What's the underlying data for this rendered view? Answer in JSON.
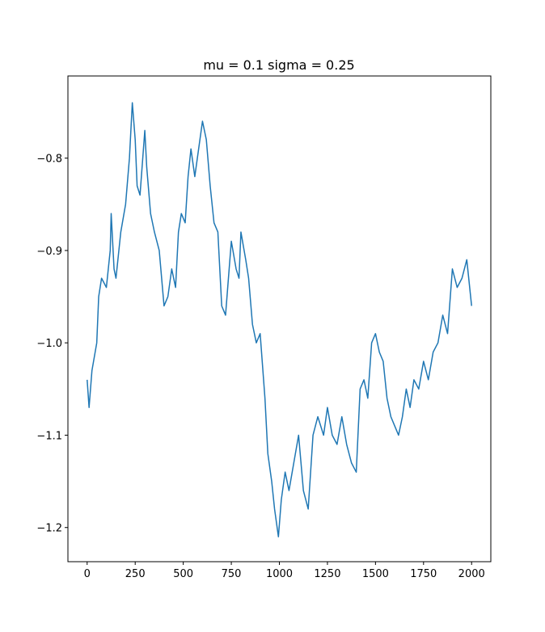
{
  "chart_data": {
    "type": "line",
    "title": "mu = 0.1 sigma = 0.25",
    "x": [
      0,
      10,
      25,
      50,
      60,
      75,
      100,
      120,
      125,
      140,
      150,
      175,
      200,
      220,
      235,
      250,
      260,
      275,
      300,
      310,
      330,
      350,
      375,
      400,
      420,
      440,
      460,
      475,
      490,
      510,
      525,
      540,
      560,
      580,
      600,
      620,
      640,
      660,
      680,
      700,
      720,
      750,
      775,
      790,
      800,
      825,
      840,
      860,
      880,
      900,
      925,
      940,
      960,
      975,
      995,
      1010,
      1030,
      1050,
      1075,
      1100,
      1125,
      1150,
      1175,
      1200,
      1230,
      1250,
      1275,
      1300,
      1325,
      1350,
      1375,
      1400,
      1420,
      1440,
      1460,
      1480,
      1500,
      1520,
      1540,
      1560,
      1580,
      1600,
      1620,
      1640,
      1660,
      1680,
      1700,
      1725,
      1750,
      1775,
      1800,
      1825,
      1850,
      1875,
      1900,
      1925,
      1950,
      1975,
      2000
    ],
    "series": [
      {
        "color": "#1f77b4",
        "values": [
          -1.04,
          -1.07,
          -1.03,
          -1.0,
          -0.95,
          -0.93,
          -0.94,
          -0.9,
          -0.86,
          -0.92,
          -0.93,
          -0.88,
          -0.85,
          -0.8,
          -0.74,
          -0.78,
          -0.83,
          -0.84,
          -0.77,
          -0.81,
          -0.86,
          -0.88,
          -0.9,
          -0.96,
          -0.95,
          -0.92,
          -0.94,
          -0.88,
          -0.86,
          -0.87,
          -0.82,
          -0.79,
          -0.82,
          -0.79,
          -0.76,
          -0.78,
          -0.83,
          -0.87,
          -0.88,
          -0.96,
          -0.97,
          -0.89,
          -0.92,
          -0.93,
          -0.88,
          -0.91,
          -0.93,
          -0.98,
          -1.0,
          -0.99,
          -1.06,
          -1.12,
          -1.15,
          -1.18,
          -1.21,
          -1.17,
          -1.14,
          -1.16,
          -1.13,
          -1.1,
          -1.16,
          -1.18,
          -1.1,
          -1.08,
          -1.1,
          -1.07,
          -1.1,
          -1.11,
          -1.08,
          -1.11,
          -1.13,
          -1.14,
          -1.05,
          -1.04,
          -1.06,
          -1.0,
          -0.99,
          -1.01,
          -1.02,
          -1.06,
          -1.08,
          -1.09,
          -1.1,
          -1.08,
          -1.05,
          -1.07,
          -1.04,
          -1.05,
          -1.02,
          -1.04,
          -1.01,
          -1.0,
          -0.97,
          -0.99,
          -0.92,
          -0.94,
          -0.93,
          -0.91,
          -0.96
        ]
      }
    ],
    "xlim": [
      -100,
      2100
    ],
    "ylim": [
      -1.237,
      -0.711
    ],
    "xticks": [
      0,
      250,
      500,
      750,
      1000,
      1250,
      1500,
      1750,
      2000
    ],
    "yticks": [
      {
        "value": -1.2,
        "label": "−1.2"
      },
      {
        "value": -1.1,
        "label": "−1.1"
      },
      {
        "value": -1.0,
        "label": "−1.0"
      },
      {
        "value": -0.9,
        "label": "−0.9"
      },
      {
        "value": -0.8,
        "label": "−0.8"
      }
    ]
  }
}
